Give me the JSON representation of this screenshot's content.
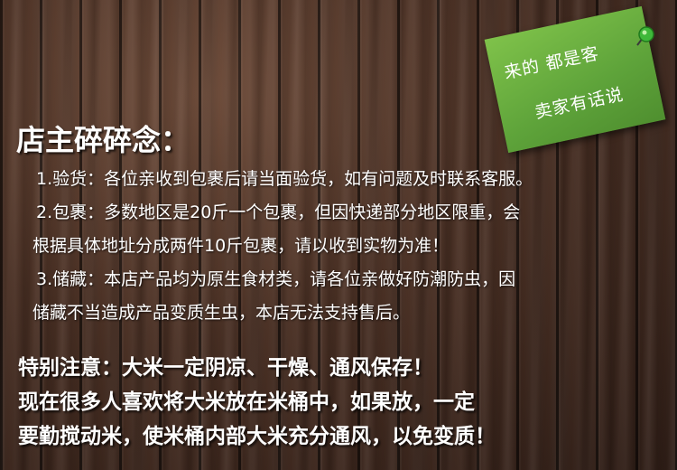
{
  "note": {
    "line1": "来的 都是客",
    "line2": "卖家有话说",
    "color": "#6db33f"
  },
  "pin_icon": "pushpin-icon",
  "title": "店主碎碎念：",
  "rules": [
    "1.验货：各位亲收到包裹后请当面验货，如有问题及时联系客服。",
    "2.包裹：多数地区是20斤一个包裹，但因快递部分地区限重，会",
    "根据具体地址分成两件10斤包裹，请以收到实物为准！",
    "3.储藏：本店产品均为原生食材类，请各位亲做好防潮防虫，因",
    "储藏不当造成产品变质生虫，本店无法支持售后。"
  ],
  "warning": [
    "特别注意：大米一定阴凉、干燥、通风保存！",
    "现在很多人喜欢将大米放在米桶中，如果放，一定",
    "要勤搅动米，使米桶内部大米充分通风，以免变质！"
  ]
}
